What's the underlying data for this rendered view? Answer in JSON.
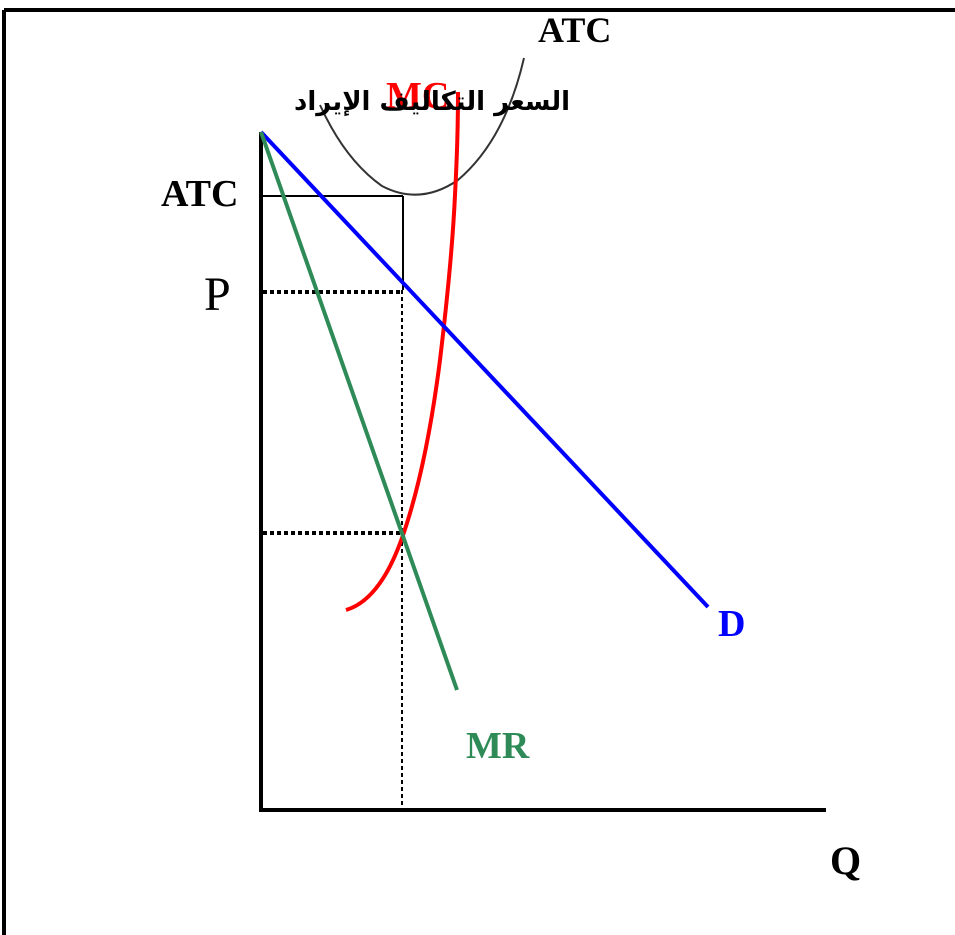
{
  "diagram": {
    "y_axis_label": "السعر التكاليف الإيراد",
    "x_axis_label": "Q",
    "price_label": "P",
    "atc_level_label": "ATC",
    "curves": {
      "atc": {
        "label": "ATC",
        "color": "#333333"
      },
      "mc": {
        "label": "MC",
        "color": "#ff0000"
      },
      "demand": {
        "label": "D",
        "color": "#0000ff"
      },
      "mr": {
        "label": "MR",
        "color": "#2e8b57"
      }
    },
    "frame_color": "#000000"
  }
}
